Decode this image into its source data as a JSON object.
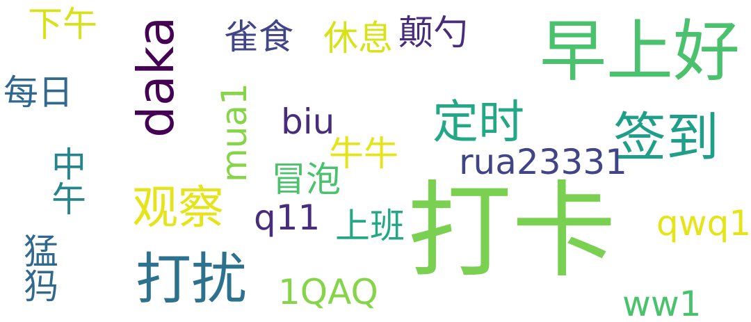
{
  "words": {
    "xiawu": {
      "text": "下午"
    },
    "queshi": {
      "text": "雀食"
    },
    "xiuxi": {
      "text": "休息"
    },
    "dianshao": {
      "text": "颠勺"
    },
    "zaoshang": {
      "text": "早上好"
    },
    "meiri": {
      "text": "每日"
    },
    "daka_en": {
      "text": "daka"
    },
    "mua1": {
      "text": "mua1"
    },
    "biu": {
      "text": "biu"
    },
    "dingshi": {
      "text": "定时"
    },
    "qiandao": {
      "text": "签到"
    },
    "niuniu": {
      "text": "牛牛"
    },
    "rua": {
      "text": "rua23331"
    },
    "zhongwu": {
      "text": "中午"
    },
    "maopao": {
      "text": "冒泡"
    },
    "guancha": {
      "text": "观察"
    },
    "q11": {
      "text": "q11"
    },
    "shangban": {
      "text": "上班"
    },
    "daka": {
      "text": "打卡"
    },
    "qwq1": {
      "text": "qwq1"
    },
    "mengma": {
      "text": "猛犸"
    },
    "darao": {
      "text": "打扰"
    },
    "1qaq": {
      "text": "1QAQ"
    },
    "ww1": {
      "text": "ww1"
    }
  }
}
